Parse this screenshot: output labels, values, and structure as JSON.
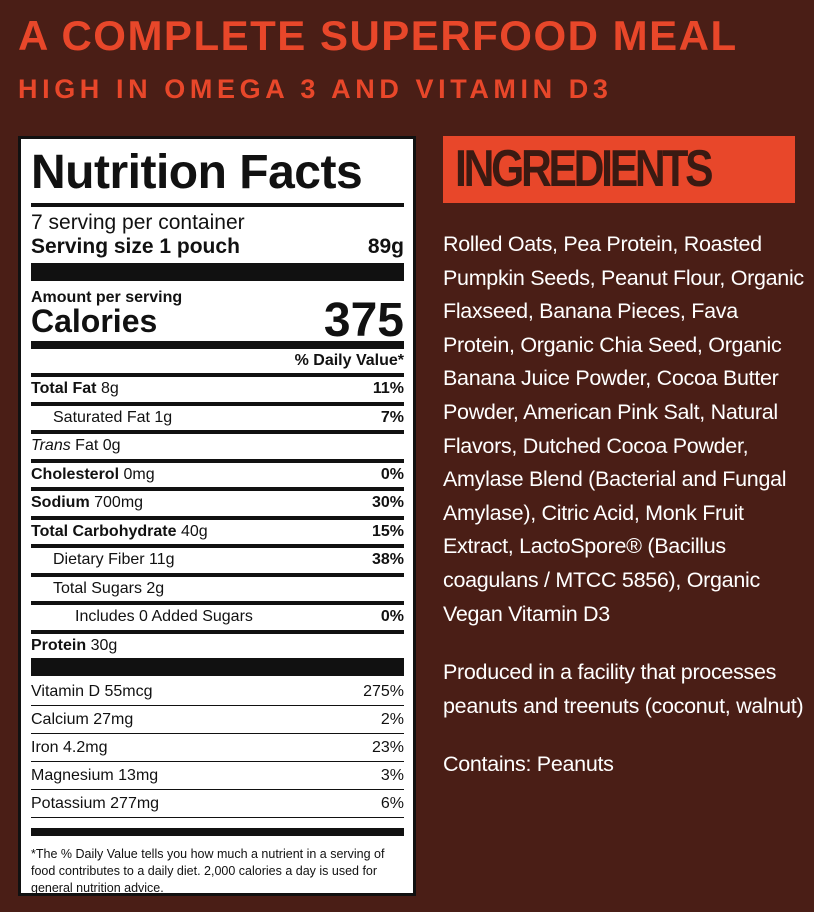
{
  "header": {
    "title": "A COMPLETE SUPERFOOD MEAL",
    "subtitle": "HIGH IN OMEGA 3 AND VITAMIN D3"
  },
  "colors": {
    "background": "#4a1e16",
    "accent": "#e8472a"
  },
  "nutrition": {
    "title": "Nutrition Facts",
    "servings": "7 serving per container",
    "serving_size_label": "Serving size 1 pouch",
    "serving_size_value": "89g",
    "amount_label": "Amount per serving",
    "calories_label": "Calories",
    "calories_value": "375",
    "dv_header": "% Daily Value*",
    "rows": [
      {
        "name": "Total Fat",
        "amount": "8g",
        "dv": "11%"
      },
      {
        "name": "Saturated Fat",
        "amount": "1g",
        "dv": "7%"
      },
      {
        "name": "Trans",
        "amount": "Fat 0g",
        "dv": ""
      },
      {
        "name": "Cholesterol",
        "amount": "0mg",
        "dv": "0%"
      },
      {
        "name": "Sodium",
        "amount": "700mg",
        "dv": "30%"
      },
      {
        "name": "Total Carbohydrate",
        "amount": "40g",
        "dv": "15%"
      },
      {
        "name": "Dietary Fiber",
        "amount": "11g",
        "dv": "38%"
      },
      {
        "name": "Total Sugars",
        "amount": "2g",
        "dv": ""
      },
      {
        "name": "Includes 0 Added Sugars",
        "amount": "",
        "dv": "0%"
      },
      {
        "name": "Protein",
        "amount": "30g",
        "dv": ""
      }
    ],
    "vitamins": [
      {
        "name": "Vitamin D 55mcg",
        "dv": "275%"
      },
      {
        "name": "Calcium 27mg",
        "dv": "2%"
      },
      {
        "name": "Iron 4.2mg",
        "dv": "23%"
      },
      {
        "name": "Magnesium 13mg",
        "dv": "3%"
      },
      {
        "name": "Potassium 277mg",
        "dv": "6%"
      }
    ],
    "footnote": "*The % Daily Value tells you how much a nutrient in a serving of food contributes to a daily diet. 2,000 calories a day is used for general nutrition advice."
  },
  "ingredients": {
    "title": "INGREDIENTS",
    "list": "Rolled Oats, Pea Protein, Roasted Pumpkin Seeds, Peanut Flour, Organic Flaxseed, Banana Pieces, Fava Protein, Organic Chia Seed, Organic Banana Juice Powder, Cocoa Butter Powder, American Pink Salt, Natural Flavors, Dutched Cocoa Powder, Amylase Blend (Bacterial and Fungal Amylase), Citric Acid, Monk Fruit Extract, LactoSpore® (Bacillus coagulans / MTCC 5856), Organic Vegan Vitamin D3",
    "facility": "Produced in a facility that processes peanuts and treenuts (coconut, walnut)",
    "contains": "Contains: Peanuts"
  }
}
